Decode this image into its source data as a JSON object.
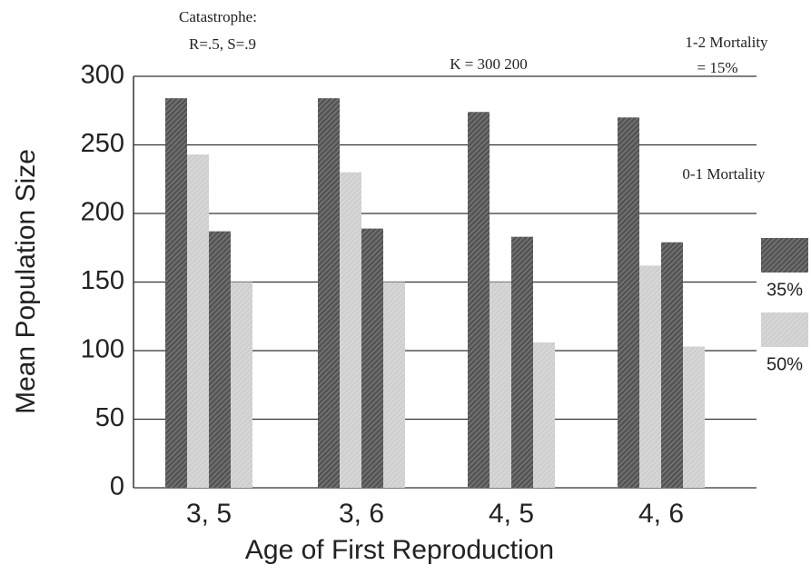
{
  "chart_data": {
    "type": "bar",
    "annotations": [
      "Catastrophe:",
      "R=.5, S=.9",
      "K = 300  200",
      "1-2 Mortality",
      "= 15%",
      "0-1 Mortality"
    ],
    "xlabel": "Age of First Reproduction",
    "ylabel": "Mean Population Size",
    "categories": [
      "3, 5",
      "3, 6",
      "4, 5",
      "4, 6"
    ],
    "series": [
      {
        "name": "35%",
        "color": "#555555",
        "values": [
          284,
          284,
          274,
          270
        ]
      },
      {
        "name": "50%",
        "color": "#cfcfcf",
        "values": [
          243,
          230,
          150,
          162
        ]
      },
      {
        "name": "35%",
        "color": "#555555",
        "values": [
          187,
          189,
          183,
          179
        ]
      },
      {
        "name": "50%",
        "color": "#cfcfcf",
        "values": [
          150,
          150,
          106,
          103
        ]
      }
    ],
    "ylim": [
      0,
      300
    ],
    "yticks": [
      0,
      50,
      100,
      150,
      200,
      250,
      300
    ],
    "grid": true
  }
}
